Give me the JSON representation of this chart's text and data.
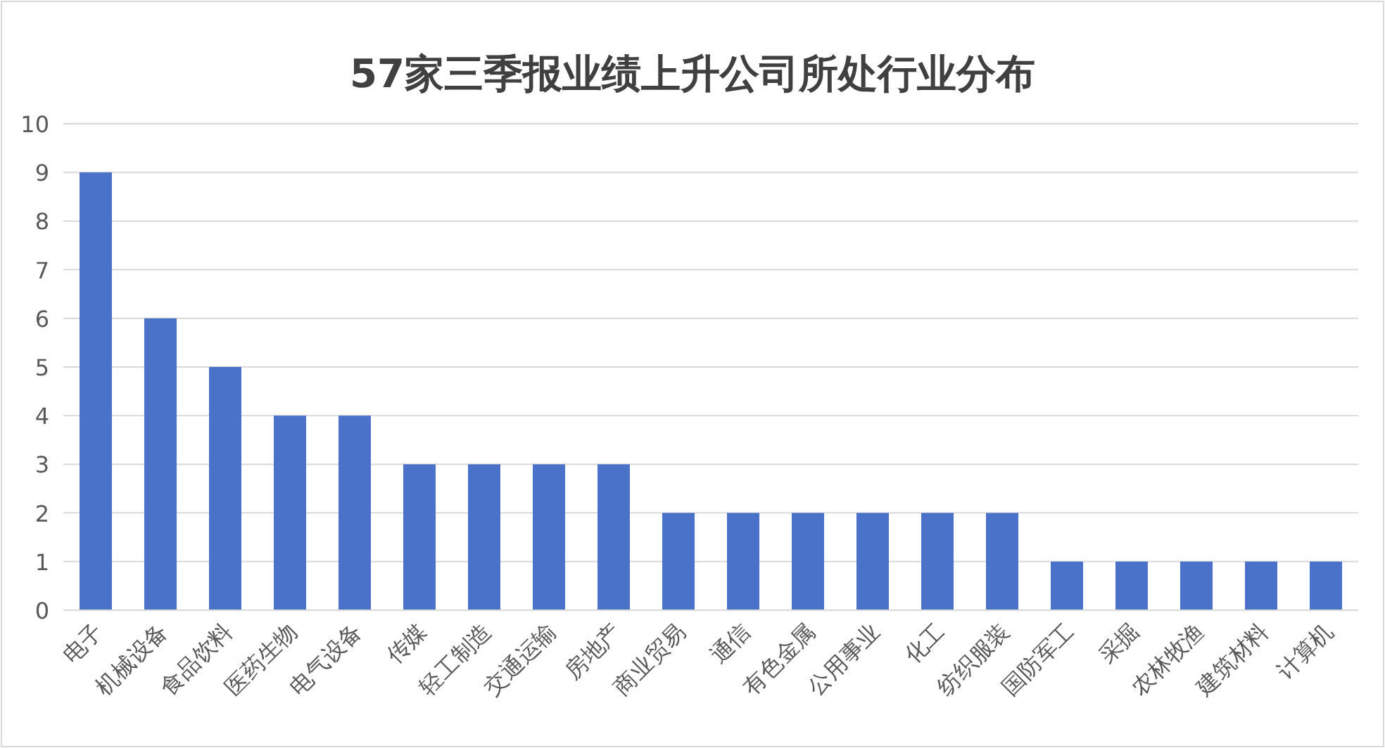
{
  "chart_data": {
    "type": "bar",
    "title": "57家三季报业绩上升公司所处行业分布",
    "categories": [
      "电子",
      "机械设备",
      "食品饮料",
      "医药生物",
      "电气设备",
      "传媒",
      "轻工制造",
      "交通运输",
      "房地产",
      "商业贸易",
      "通信",
      "有色金属",
      "公用事业",
      "化工",
      "纺织服装",
      "国防军工",
      "采掘",
      "农林牧渔",
      "建筑材料",
      "计算机"
    ],
    "values": [
      9,
      6,
      5,
      4,
      4,
      3,
      3,
      3,
      3,
      2,
      2,
      2,
      2,
      2,
      2,
      1,
      1,
      1,
      1,
      1
    ],
    "color": "#4a72c8",
    "ylim": [
      0,
      10
    ],
    "yticks": [
      0,
      1,
      2,
      3,
      4,
      5,
      6,
      7,
      8,
      9,
      10
    ],
    "grid": "y"
  }
}
